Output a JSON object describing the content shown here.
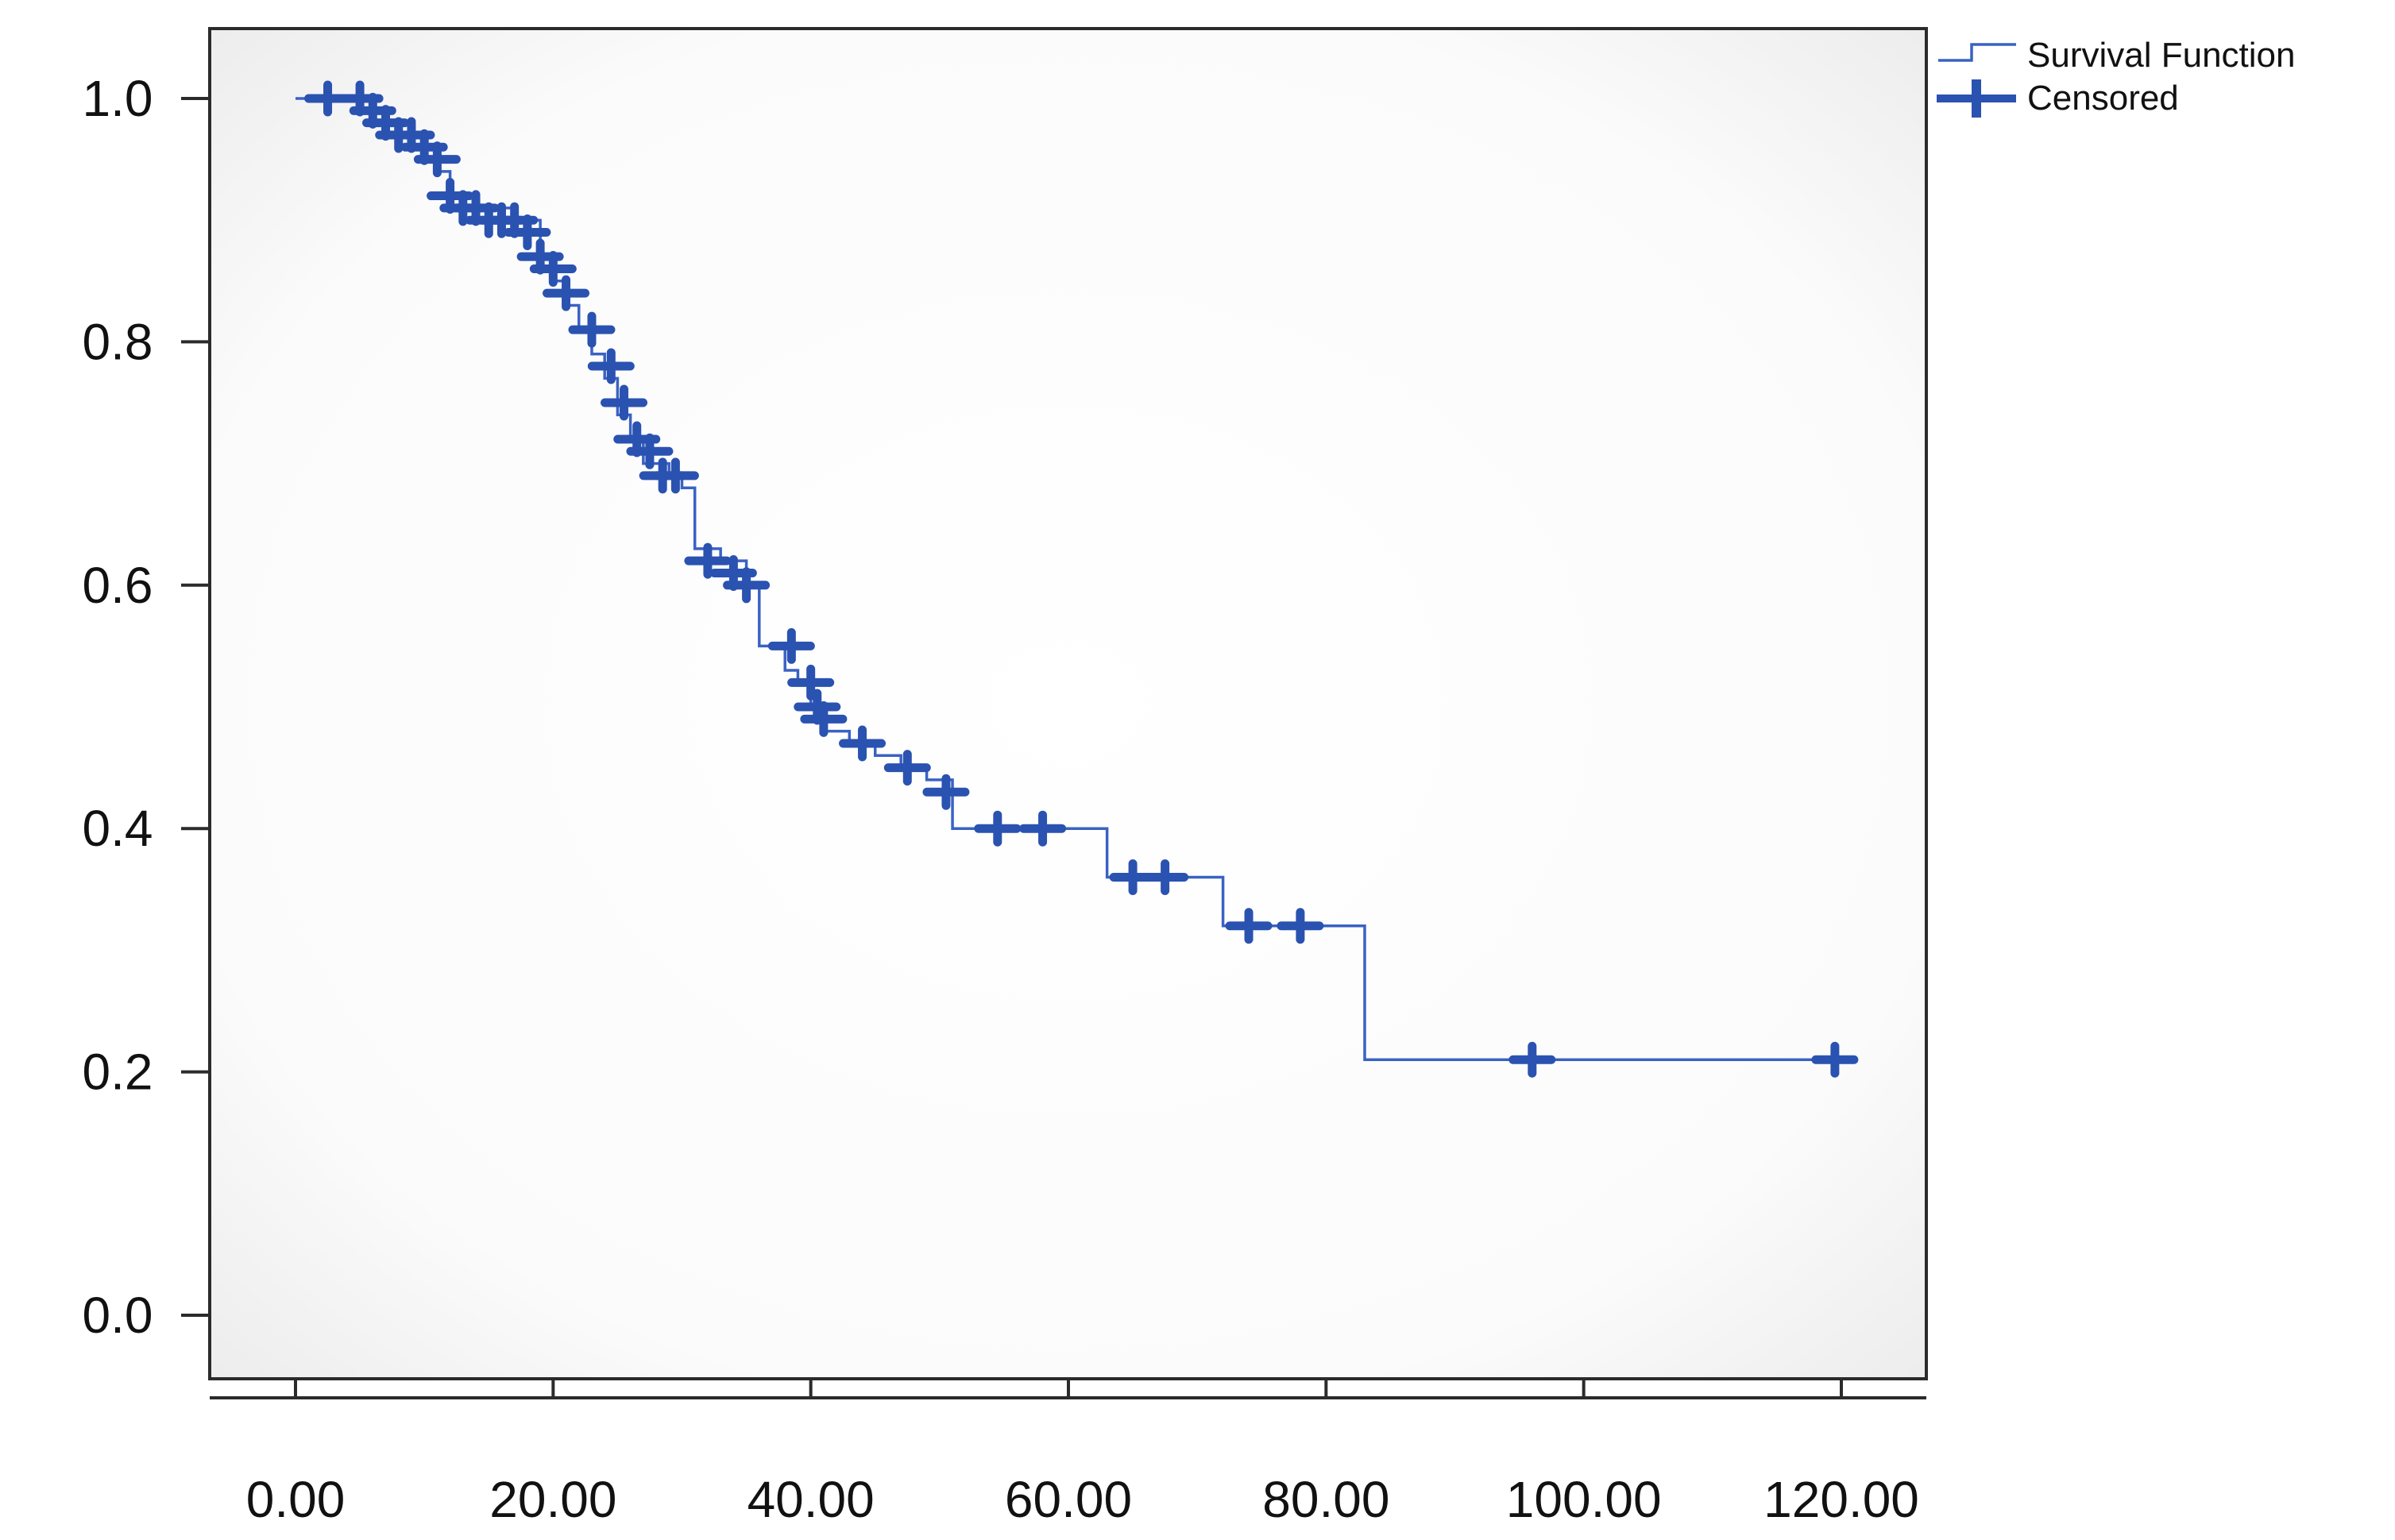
{
  "chart_data": {
    "type": "line",
    "subtype": "kaplan-meier",
    "title": "",
    "xlabel": "",
    "ylabel": "",
    "xlim": [
      0,
      120
    ],
    "ylim": [
      0,
      1.0
    ],
    "x_ticks": [
      0,
      20,
      40,
      60,
      80,
      100,
      120
    ],
    "x_tick_labels": [
      "0.00",
      "20.00",
      "40.00",
      "60.00",
      "80.00",
      "100.00",
      "120.00"
    ],
    "y_ticks": [
      0.0,
      0.2,
      0.4,
      0.6,
      0.8,
      1.0
    ],
    "y_tick_labels": [
      "0.0",
      "0.2",
      "0.4",
      "0.6",
      "0.8",
      "1.0"
    ],
    "grid": false,
    "legend": {
      "position": "top-right-outside",
      "entries": [
        "Survival Function",
        "Censored"
      ]
    },
    "series": [
      {
        "name": "Survival Function",
        "kind": "step",
        "color": "#3a62c4",
        "x": [
          0,
          5,
          7,
          8,
          9,
          10,
          11,
          12,
          14,
          17,
          19,
          20,
          21,
          22,
          23,
          24,
          25,
          26,
          27,
          29,
          30,
          31,
          33,
          35,
          36,
          38,
          39,
          40,
          41,
          43,
          45,
          47,
          49,
          51,
          55,
          58,
          63,
          66,
          68,
          72,
          75,
          78,
          83,
          90,
          96,
          110,
          120
        ],
        "y": [
          1.0,
          0.99,
          0.98,
          0.97,
          0.96,
          0.95,
          0.94,
          0.92,
          0.91,
          0.9,
          0.87,
          0.85,
          0.83,
          0.81,
          0.79,
          0.77,
          0.74,
          0.72,
          0.7,
          0.69,
          0.68,
          0.63,
          0.62,
          0.6,
          0.55,
          0.53,
          0.52,
          0.5,
          0.48,
          0.47,
          0.46,
          0.45,
          0.44,
          0.4,
          0.4,
          0.4,
          0.36,
          0.36,
          0.36,
          0.32,
          0.32,
          0.32,
          0.21,
          0.21,
          0.21,
          0.21,
          0.21
        ]
      },
      {
        "name": "Censored",
        "kind": "marker",
        "color": "#2a52b0",
        "x": [
          2.5,
          5,
          6,
          7,
          8,
          9,
          10,
          11,
          12,
          13,
          14,
          15,
          16,
          17,
          18,
          19,
          20,
          21,
          23,
          24.5,
          25.5,
          26.5,
          27.5,
          28.5,
          29.5,
          32,
          34,
          35,
          38.5,
          40,
          40.5,
          41,
          44,
          47.5,
          50.5,
          54.5,
          58,
          65,
          67.5,
          74,
          78,
          96,
          119.5
        ],
        "y": [
          1.0,
          1.0,
          0.99,
          0.98,
          0.97,
          0.97,
          0.96,
          0.95,
          0.92,
          0.91,
          0.91,
          0.9,
          0.9,
          0.9,
          0.89,
          0.87,
          0.86,
          0.84,
          0.81,
          0.78,
          0.75,
          0.72,
          0.71,
          0.69,
          0.69,
          0.62,
          0.61,
          0.6,
          0.55,
          0.52,
          0.5,
          0.49,
          0.47,
          0.45,
          0.43,
          0.4,
          0.4,
          0.36,
          0.36,
          0.32,
          0.32,
          0.21,
          0.21
        ]
      }
    ]
  }
}
